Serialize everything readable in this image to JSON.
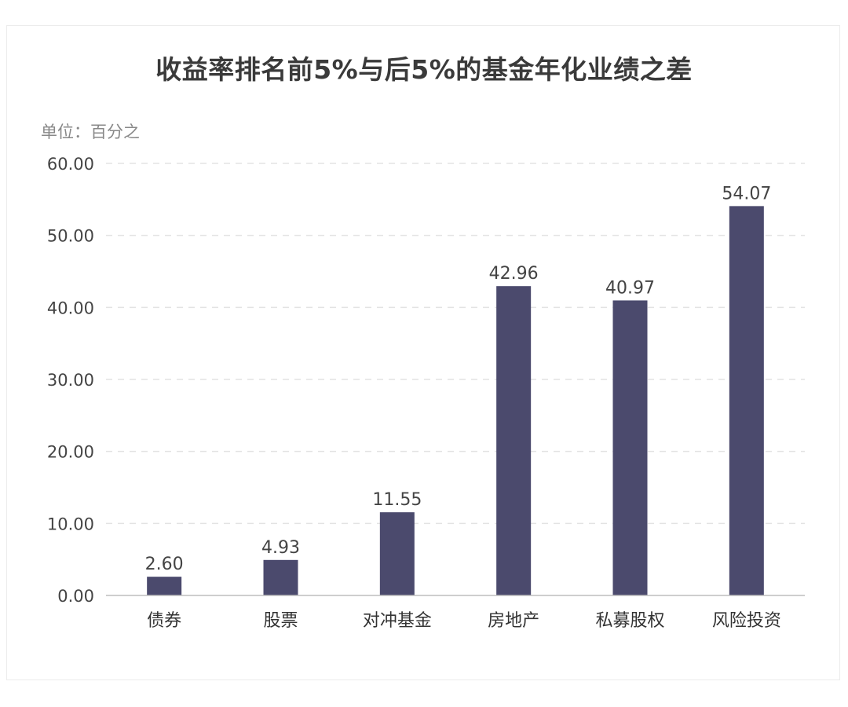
{
  "chart_data": {
    "type": "bar",
    "title": "收益率排名前5%与后5%的基金年化业绩之差",
    "unit_label": "单位：百分之",
    "categories": [
      "债券",
      "股票",
      "对冲基金",
      "房地产",
      "私募股权",
      "风险投资"
    ],
    "values": [
      2.6,
      4.93,
      11.55,
      42.96,
      40.97,
      54.07
    ],
    "value_labels": [
      "2.60",
      "4.93",
      "11.55",
      "42.96",
      "40.97",
      "54.07"
    ],
    "y_ticks": [
      "0.00",
      "10.00",
      "20.00",
      "30.00",
      "40.00",
      "50.00",
      "60.00"
    ],
    "ylim": [
      0,
      60
    ],
    "grid": true,
    "grid_style": "dashed",
    "bar_color": "#4b4a6d"
  }
}
